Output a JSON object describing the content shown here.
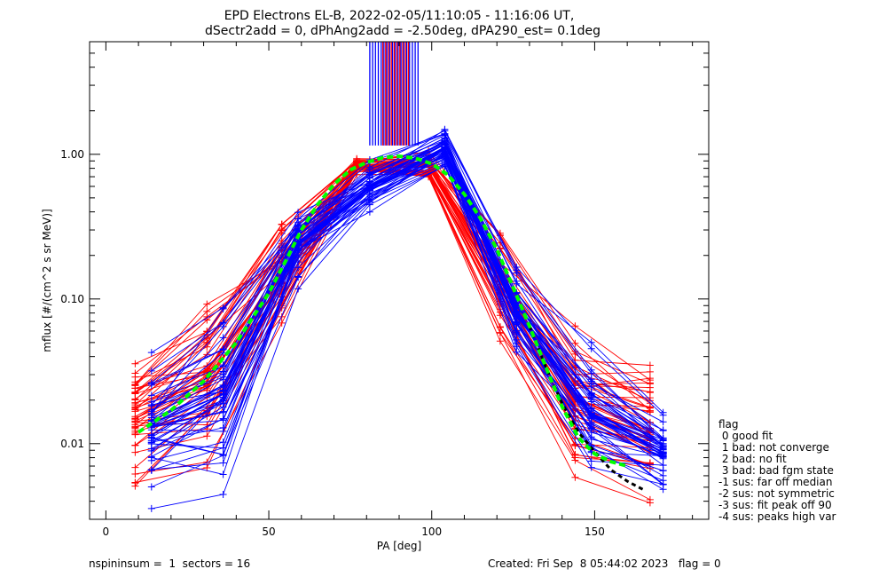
{
  "chart_data": {
    "type": "line",
    "title_line1": "EPD Electrons EL-B, 2022-02-05/11:10:05 - 11:16:06 UT,",
    "title_line2": "dSectr2add = 0, dPhAng2add = -2.50deg, dPA290_est=   0.1deg",
    "xlabel": "PA [deg]",
    "ylabel": "mflux [#/(cm^2 s sr MeV)]",
    "xlim": [
      -5,
      185
    ],
    "ylim": [
      0.003,
      6
    ],
    "y_scale": "log",
    "x_ticks": [
      0,
      50,
      100,
      150
    ],
    "y_ticks": [
      0.01,
      0.1,
      1.0
    ],
    "y_tick_labels": [
      "0.01",
      "0.10",
      "1.00"
    ],
    "pa_bins_red": [
      9,
      31,
      54,
      77,
      99,
      121,
      144,
      167
    ],
    "pa_bins_blue": [
      14,
      36,
      59,
      81,
      104,
      126,
      149,
      171
    ],
    "envelope_red": {
      "lo": [
        0.0045,
        0.0048,
        0.045,
        0.7,
        0.6,
        0.04,
        0.004,
        0.003
      ],
      "hi": [
        0.046,
        0.13,
        0.4,
        0.95,
        1.1,
        0.35,
        0.075,
        0.041
      ]
    },
    "envelope_blue": {
      "lo": [
        0.0035,
        0.004,
        0.11,
        0.34,
        0.7,
        0.034,
        0.005,
        0.0045
      ],
      "hi": [
        0.05,
        0.12,
        0.56,
        1.05,
        1.7,
        0.19,
        0.052,
        0.017
      ]
    },
    "fit_green": {
      "x": [
        10,
        20,
        30,
        40,
        50,
        55,
        60,
        65,
        70,
        75,
        80,
        85,
        90,
        95,
        100,
        105,
        110,
        115,
        120,
        125,
        130,
        135,
        140,
        145,
        150,
        155,
        160
      ],
      "y": [
        0.012,
        0.017,
        0.027,
        0.05,
        0.11,
        0.18,
        0.3,
        0.45,
        0.62,
        0.78,
        0.88,
        0.95,
        0.97,
        0.94,
        0.86,
        0.72,
        0.53,
        0.36,
        0.22,
        0.12,
        0.065,
        0.034,
        0.018,
        0.011,
        0.0085,
        0.0075,
        0.007
      ]
    },
    "fit_black": {
      "x": [
        130,
        135,
        140,
        145,
        150,
        155,
        160,
        165
      ],
      "y": [
        0.065,
        0.034,
        0.019,
        0.012,
        0.0088,
        0.0066,
        0.0055,
        0.0048
      ]
    },
    "spike_bands": [
      {
        "x0": 81,
        "x1": 96,
        "color": "#0000ff"
      },
      {
        "x0": 85,
        "x1": 93,
        "color": "#ff0000"
      }
    ],
    "colors": {
      "red": "#ff0000",
      "blue": "#0000ff",
      "green": "#00ff00",
      "black": "#000000"
    }
  },
  "legend": {
    "title": "flag",
    "items": [
      " 0 good fit",
      " 1 bad: not converge",
      " 2 bad: no fit",
      " 3 bad: bad fgm state",
      "-1 sus: far off median",
      "-2 sus: not symmetric",
      "-3 sus: fit peak off 90",
      "-4 sus: peaks high var"
    ]
  },
  "footer": {
    "left": "nspininsum =  1  sectors = 16",
    "right": "Created: Fri Sep  8 05:44:02 2023   flag = 0"
  }
}
